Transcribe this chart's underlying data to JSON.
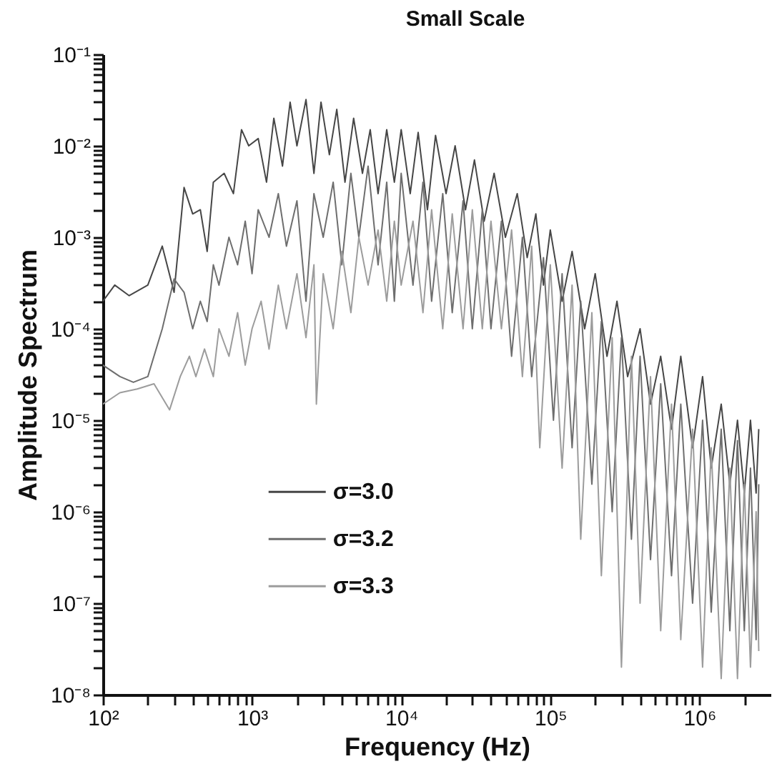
{
  "chart_data": {
    "type": "line",
    "title": "Small Scale",
    "xlabel": "Frequency (Hz)",
    "ylabel": "Amplitude Spectrum",
    "log": "xy",
    "grid": false,
    "legend": "bottom",
    "xlim": [
      100,
      3000000
    ],
    "ylim": [
      1e-08,
      0.1
    ],
    "xticks": [
      {
        "value": 100,
        "label": "10²"
      },
      {
        "value": 200,
        "label": null
      },
      {
        "value": 300,
        "label": null
      },
      {
        "value": 400,
        "label": null
      },
      {
        "value": 500,
        "label": null
      },
      {
        "value": 600,
        "label": null
      },
      {
        "value": 700,
        "label": null
      },
      {
        "value": 800,
        "label": null
      },
      {
        "value": 900,
        "label": null
      },
      {
        "value": 1000,
        "label": "10³"
      },
      {
        "value": 2000,
        "label": null
      },
      {
        "value": 3000,
        "label": null
      },
      {
        "value": 4000,
        "label": null
      },
      {
        "value": 5000,
        "label": null
      },
      {
        "value": 6000,
        "label": null
      },
      {
        "value": 7000,
        "label": null
      },
      {
        "value": 8000,
        "label": null
      },
      {
        "value": 9000,
        "label": null
      },
      {
        "value": 10000,
        "label": "10⁴"
      },
      {
        "value": 20000,
        "label": null
      },
      {
        "value": 30000,
        "label": null
      },
      {
        "value": 40000,
        "label": null
      },
      {
        "value": 50000,
        "label": null
      },
      {
        "value": 60000,
        "label": null
      },
      {
        "value": 70000,
        "label": null
      },
      {
        "value": 80000,
        "label": null
      },
      {
        "value": 90000,
        "label": null
      },
      {
        "value": 100000,
        "label": "10⁵"
      },
      {
        "value": 200000,
        "label": null
      },
      {
        "value": 300000,
        "label": null
      },
      {
        "value": 400000,
        "label": null
      },
      {
        "value": 500000,
        "label": null
      },
      {
        "value": 600000,
        "label": null
      },
      {
        "value": 700000,
        "label": null
      },
      {
        "value": 800000,
        "label": null
      },
      {
        "value": 900000,
        "label": null
      },
      {
        "value": 1000000,
        "label": "10⁶"
      },
      {
        "value": 2000000,
        "label": null
      }
    ],
    "yticks": [
      {
        "value": 1e-08,
        "label": "10⁻⁸"
      },
      {
        "value": 2e-08,
        "label": null
      },
      {
        "value": 3e-08,
        "label": null
      },
      {
        "value": 4e-08,
        "label": null
      },
      {
        "value": 5e-08,
        "label": null
      },
      {
        "value": 6e-08,
        "label": null
      },
      {
        "value": 7e-08,
        "label": null
      },
      {
        "value": 8e-08,
        "label": null
      },
      {
        "value": 9e-08,
        "label": null
      },
      {
        "value": 1e-07,
        "label": "10⁻⁷"
      },
      {
        "value": 2e-07,
        "label": null
      },
      {
        "value": 3e-07,
        "label": null
      },
      {
        "value": 4e-07,
        "label": null
      },
      {
        "value": 5e-07,
        "label": null
      },
      {
        "value": 6e-07,
        "label": null
      },
      {
        "value": 7e-07,
        "label": null
      },
      {
        "value": 8e-07,
        "label": null
      },
      {
        "value": 9e-07,
        "label": null
      },
      {
        "value": 1e-06,
        "label": "10⁻⁶"
      },
      {
        "value": 2e-06,
        "label": null
      },
      {
        "value": 3e-06,
        "label": null
      },
      {
        "value": 4e-06,
        "label": null
      },
      {
        "value": 5e-06,
        "label": null
      },
      {
        "value": 6e-06,
        "label": null
      },
      {
        "value": 7e-06,
        "label": null
      },
      {
        "value": 8e-06,
        "label": null
      },
      {
        "value": 9e-06,
        "label": null
      },
      {
        "value": 1e-05,
        "label": "10⁻⁵"
      },
      {
        "value": 2e-05,
        "label": null
      },
      {
        "value": 3e-05,
        "label": null
      },
      {
        "value": 4e-05,
        "label": null
      },
      {
        "value": 5e-05,
        "label": null
      },
      {
        "value": 6e-05,
        "label": null
      },
      {
        "value": 7e-05,
        "label": null
      },
      {
        "value": 8e-05,
        "label": null
      },
      {
        "value": 9e-05,
        "label": null
      },
      {
        "value": 0.0001,
        "label": "10⁻⁴"
      },
      {
        "value": 0.0002,
        "label": null
      },
      {
        "value": 0.0003,
        "label": null
      },
      {
        "value": 0.0004,
        "label": null
      },
      {
        "value": 0.0005,
        "label": null
      },
      {
        "value": 0.0006,
        "label": null
      },
      {
        "value": 0.0007,
        "label": null
      },
      {
        "value": 0.0008,
        "label": null
      },
      {
        "value": 0.0009,
        "label": null
      },
      {
        "value": 0.001,
        "label": "10⁻³"
      },
      {
        "value": 0.002,
        "label": null
      },
      {
        "value": 0.003,
        "label": null
      },
      {
        "value": 0.004,
        "label": null
      },
      {
        "value": 0.005,
        "label": null
      },
      {
        "value": 0.006,
        "label": null
      },
      {
        "value": 0.007,
        "label": null
      },
      {
        "value": 0.008,
        "label": null
      },
      {
        "value": 0.009,
        "label": null
      },
      {
        "value": 0.01,
        "label": "10⁻²"
      },
      {
        "value": 0.02,
        "label": null
      },
      {
        "value": 0.03,
        "label": null
      },
      {
        "value": 0.04,
        "label": null
      },
      {
        "value": 0.05,
        "label": null
      },
      {
        "value": 0.06,
        "label": null
      },
      {
        "value": 0.07,
        "label": null
      },
      {
        "value": 0.08,
        "label": null
      },
      {
        "value": 0.09,
        "label": null
      },
      {
        "value": 0.1,
        "label": "10⁻¹"
      }
    ],
    "series": [
      {
        "name": "σ=3.0",
        "color": "#464646",
        "x": [
          100,
          120,
          150,
          200,
          250,
          300,
          350,
          400,
          450,
          500,
          550,
          650,
          750,
          850,
          950,
          1100,
          1250,
          1400,
          1600,
          1800,
          2000,
          2300,
          2600,
          2900,
          3300,
          3700,
          4200,
          4800,
          5500,
          6200,
          7000,
          8000,
          9000,
          10000,
          11500,
          13000,
          15000,
          17000,
          20000,
          23000,
          27000,
          31000,
          36000,
          42000,
          50000,
          60000,
          70000,
          80000,
          90000,
          100000,
          120000,
          140000,
          170000,
          200000,
          240000,
          280000,
          330000,
          400000,
          470000,
          550000,
          650000,
          750000,
          900000,
          1050000,
          1200000,
          1400000,
          1600000,
          1800000,
          2000000,
          2200000,
          2400000,
          2500000
        ],
        "values": [
          0.0002,
          0.0003,
          0.00023,
          0.0003,
          0.0008,
          0.00025,
          0.0035,
          0.0018,
          0.002,
          0.0007,
          0.004,
          0.005,
          0.003,
          0.015,
          0.01,
          0.012,
          0.004,
          0.02,
          0.006,
          0.03,
          0.01,
          0.032,
          0.005,
          0.03,
          0.008,
          0.025,
          0.004,
          0.02,
          0.005,
          0.015,
          0.003,
          0.015,
          0.004,
          0.015,
          0.003,
          0.014,
          0.002,
          0.013,
          0.003,
          0.01,
          0.002,
          0.007,
          0.0015,
          0.005,
          0.001,
          0.003,
          0.0006,
          0.0018,
          0.0003,
          0.0012,
          0.0002,
          0.0007,
          0.0001,
          0.0004,
          5e-05,
          0.0002,
          3e-05,
          0.0001,
          1.5e-05,
          5e-05,
          8e-06,
          5e-05,
          5e-06,
          3e-05,
          3e-06,
          1.5e-05,
          2e-06,
          1e-05,
          1.6e-06,
          1e-05,
          1.6e-06,
          8e-06
        ]
      },
      {
        "name": "σ=3.2",
        "color": "#6e6e6e",
        "x": [
          100,
          130,
          160,
          200,
          250,
          300,
          350,
          400,
          450,
          500,
          550,
          600,
          700,
          800,
          900,
          1000,
          1100,
          1300,
          1500,
          1700,
          2000,
          2300,
          2600,
          3000,
          3500,
          4000,
          4600,
          5200,
          6000,
          7000,
          8000,
          9000,
          10000,
          12000,
          14000,
          16000,
          19000,
          22000,
          26000,
          30000,
          35000,
          40000,
          47000,
          55000,
          65000,
          75000,
          90000,
          105000,
          120000,
          140000,
          160000,
          190000,
          220000,
          260000,
          300000,
          350000,
          400000,
          470000,
          550000,
          650000,
          750000,
          900000,
          1050000,
          1200000,
          1400000,
          1600000,
          1800000,
          2000000,
          2200000,
          2400000,
          2500000
        ],
        "values": [
          4e-05,
          3e-05,
          2.6e-05,
          3e-05,
          0.0001,
          0.00035,
          0.00025,
          0.0001,
          0.0002,
          0.00012,
          0.0005,
          0.0003,
          0.001,
          0.0005,
          0.0015,
          0.0004,
          0.002,
          0.001,
          0.003,
          0.0008,
          0.0025,
          0.0002,
          0.003,
          0.001,
          0.004,
          0.0005,
          0.005,
          0.001,
          0.006,
          0.0005,
          0.004,
          0.0002,
          0.005,
          0.0003,
          0.004,
          0.0002,
          0.003,
          0.00015,
          0.0025,
          0.0001,
          0.002,
          0.0001,
          0.0015,
          5e-05,
          0.001,
          3e-05,
          0.0006,
          1e-05,
          0.0004,
          5e-06,
          0.0002,
          2e-06,
          0.00012,
          1e-06,
          8e-05,
          5e-07,
          5e-05,
          3e-07,
          2.5e-05,
          2e-07,
          1.5e-05,
          1e-07,
          1e-05,
          8e-08,
          8e-06,
          5e-08,
          6e-06,
          5e-08,
          3e-06,
          4e-08,
          2e-06
        ]
      },
      {
        "name": "σ=3.3",
        "color": "#9c9c9c",
        "x": [
          100,
          130,
          170,
          220,
          280,
          330,
          380,
          420,
          480,
          550,
          600,
          700,
          800,
          900,
          1000,
          1150,
          1300,
          1500,
          1700,
          2000,
          2300,
          2600,
          2700,
          3000,
          3500,
          4000,
          4600,
          5200,
          6000,
          7000,
          8000,
          9000,
          10000,
          12000,
          14000,
          16000,
          19000,
          22000,
          26000,
          30000,
          35000,
          40000,
          47000,
          55000,
          65000,
          75000,
          85000,
          100000,
          120000,
          140000,
          160000,
          190000,
          220000,
          260000,
          300000,
          350000,
          400000,
          470000,
          550000,
          650000,
          750000,
          900000,
          1050000,
          1200000,
          1400000,
          1600000,
          1800000,
          2000000,
          2200000,
          2400000,
          2500000
        ],
        "values": [
          1.5e-05,
          2e-05,
          2.2e-05,
          2.5e-05,
          1.3e-05,
          3e-05,
          5e-05,
          3e-05,
          6e-05,
          3e-05,
          0.0001,
          5e-05,
          0.00015,
          4e-05,
          0.0001,
          0.0002,
          6e-05,
          0.0003,
          0.0001,
          0.0004,
          8e-05,
          0.0005,
          1.5e-05,
          0.0004,
          0.0001,
          0.0007,
          0.00015,
          0.001,
          0.0003,
          0.0012,
          0.0002,
          0.0015,
          0.0003,
          0.0015,
          0.00015,
          0.002,
          0.0001,
          0.0018,
          0.0001,
          0.002,
          0.0001,
          0.0015,
          0.0001,
          0.0012,
          3e-05,
          0.0008,
          5e-06,
          0.0005,
          3e-06,
          0.0003,
          5e-07,
          0.00015,
          2e-07,
          8e-05,
          2e-08,
          5e-05,
          1e-07,
          3e-05,
          5e-08,
          1.5e-05,
          4e-08,
          8e-06,
          2e-08,
          5e-06,
          1.5e-08,
          3e-06,
          1.5e-08,
          2e-06,
          2e-08,
          1e-06,
          3e-08
        ]
      }
    ]
  }
}
